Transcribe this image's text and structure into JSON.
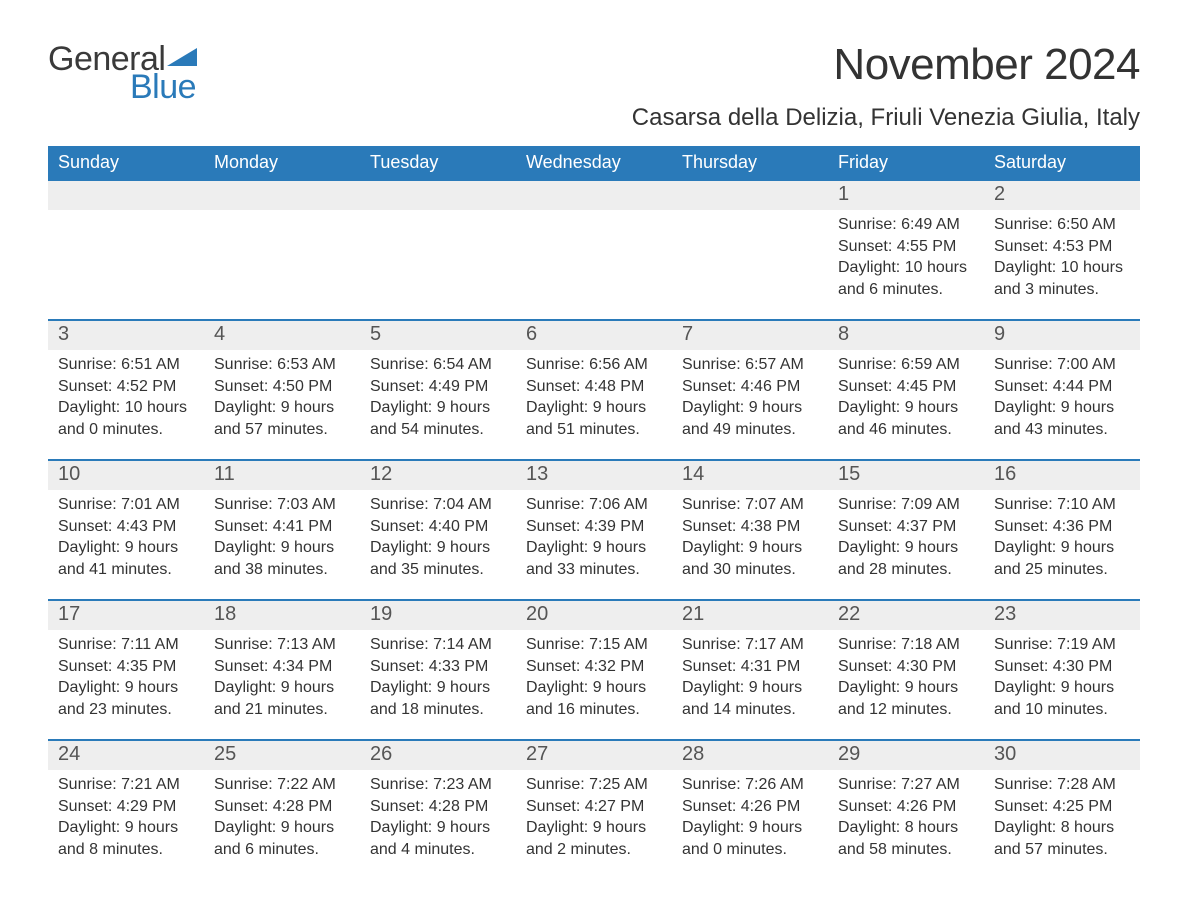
{
  "brand": {
    "part1": "General",
    "part2": "Blue"
  },
  "title": "November 2024",
  "location": "Casarsa della Delizia, Friuli Venezia Giulia, Italy",
  "colors": {
    "blue": "#2a7ab9",
    "band": "#eeeeee",
    "text": "#333333",
    "daynum": "#555555",
    "page_bg": "#ffffff"
  },
  "typography": {
    "title_fontsize_pt": 33,
    "location_fontsize_pt": 18,
    "dow_fontsize_pt": 13,
    "daynum_fontsize_pt": 15,
    "body_fontsize_pt": 12,
    "font_family": "Arial"
  },
  "dow": [
    "Sunday",
    "Monday",
    "Tuesday",
    "Wednesday",
    "Thursday",
    "Friday",
    "Saturday"
  ],
  "weeks": [
    [
      null,
      null,
      null,
      null,
      null,
      {
        "n": "1",
        "sunrise": "Sunrise: 6:49 AM",
        "sunset": "Sunset: 4:55 PM",
        "daylight1": "Daylight: 10 hours",
        "daylight2": "and 6 minutes."
      },
      {
        "n": "2",
        "sunrise": "Sunrise: 6:50 AM",
        "sunset": "Sunset: 4:53 PM",
        "daylight1": "Daylight: 10 hours",
        "daylight2": "and 3 minutes."
      }
    ],
    [
      {
        "n": "3",
        "sunrise": "Sunrise: 6:51 AM",
        "sunset": "Sunset: 4:52 PM",
        "daylight1": "Daylight: 10 hours",
        "daylight2": "and 0 minutes."
      },
      {
        "n": "4",
        "sunrise": "Sunrise: 6:53 AM",
        "sunset": "Sunset: 4:50 PM",
        "daylight1": "Daylight: 9 hours",
        "daylight2": "and 57 minutes."
      },
      {
        "n": "5",
        "sunrise": "Sunrise: 6:54 AM",
        "sunset": "Sunset: 4:49 PM",
        "daylight1": "Daylight: 9 hours",
        "daylight2": "and 54 minutes."
      },
      {
        "n": "6",
        "sunrise": "Sunrise: 6:56 AM",
        "sunset": "Sunset: 4:48 PM",
        "daylight1": "Daylight: 9 hours",
        "daylight2": "and 51 minutes."
      },
      {
        "n": "7",
        "sunrise": "Sunrise: 6:57 AM",
        "sunset": "Sunset: 4:46 PM",
        "daylight1": "Daylight: 9 hours",
        "daylight2": "and 49 minutes."
      },
      {
        "n": "8",
        "sunrise": "Sunrise: 6:59 AM",
        "sunset": "Sunset: 4:45 PM",
        "daylight1": "Daylight: 9 hours",
        "daylight2": "and 46 minutes."
      },
      {
        "n": "9",
        "sunrise": "Sunrise: 7:00 AM",
        "sunset": "Sunset: 4:44 PM",
        "daylight1": "Daylight: 9 hours",
        "daylight2": "and 43 minutes."
      }
    ],
    [
      {
        "n": "10",
        "sunrise": "Sunrise: 7:01 AM",
        "sunset": "Sunset: 4:43 PM",
        "daylight1": "Daylight: 9 hours",
        "daylight2": "and 41 minutes."
      },
      {
        "n": "11",
        "sunrise": "Sunrise: 7:03 AM",
        "sunset": "Sunset: 4:41 PM",
        "daylight1": "Daylight: 9 hours",
        "daylight2": "and 38 minutes."
      },
      {
        "n": "12",
        "sunrise": "Sunrise: 7:04 AM",
        "sunset": "Sunset: 4:40 PM",
        "daylight1": "Daylight: 9 hours",
        "daylight2": "and 35 minutes."
      },
      {
        "n": "13",
        "sunrise": "Sunrise: 7:06 AM",
        "sunset": "Sunset: 4:39 PM",
        "daylight1": "Daylight: 9 hours",
        "daylight2": "and 33 minutes."
      },
      {
        "n": "14",
        "sunrise": "Sunrise: 7:07 AM",
        "sunset": "Sunset: 4:38 PM",
        "daylight1": "Daylight: 9 hours",
        "daylight2": "and 30 minutes."
      },
      {
        "n": "15",
        "sunrise": "Sunrise: 7:09 AM",
        "sunset": "Sunset: 4:37 PM",
        "daylight1": "Daylight: 9 hours",
        "daylight2": "and 28 minutes."
      },
      {
        "n": "16",
        "sunrise": "Sunrise: 7:10 AM",
        "sunset": "Sunset: 4:36 PM",
        "daylight1": "Daylight: 9 hours",
        "daylight2": "and 25 minutes."
      }
    ],
    [
      {
        "n": "17",
        "sunrise": "Sunrise: 7:11 AM",
        "sunset": "Sunset: 4:35 PM",
        "daylight1": "Daylight: 9 hours",
        "daylight2": "and 23 minutes."
      },
      {
        "n": "18",
        "sunrise": "Sunrise: 7:13 AM",
        "sunset": "Sunset: 4:34 PM",
        "daylight1": "Daylight: 9 hours",
        "daylight2": "and 21 minutes."
      },
      {
        "n": "19",
        "sunrise": "Sunrise: 7:14 AM",
        "sunset": "Sunset: 4:33 PM",
        "daylight1": "Daylight: 9 hours",
        "daylight2": "and 18 minutes."
      },
      {
        "n": "20",
        "sunrise": "Sunrise: 7:15 AM",
        "sunset": "Sunset: 4:32 PM",
        "daylight1": "Daylight: 9 hours",
        "daylight2": "and 16 minutes."
      },
      {
        "n": "21",
        "sunrise": "Sunrise: 7:17 AM",
        "sunset": "Sunset: 4:31 PM",
        "daylight1": "Daylight: 9 hours",
        "daylight2": "and 14 minutes."
      },
      {
        "n": "22",
        "sunrise": "Sunrise: 7:18 AM",
        "sunset": "Sunset: 4:30 PM",
        "daylight1": "Daylight: 9 hours",
        "daylight2": "and 12 minutes."
      },
      {
        "n": "23",
        "sunrise": "Sunrise: 7:19 AM",
        "sunset": "Sunset: 4:30 PM",
        "daylight1": "Daylight: 9 hours",
        "daylight2": "and 10 minutes."
      }
    ],
    [
      {
        "n": "24",
        "sunrise": "Sunrise: 7:21 AM",
        "sunset": "Sunset: 4:29 PM",
        "daylight1": "Daylight: 9 hours",
        "daylight2": "and 8 minutes."
      },
      {
        "n": "25",
        "sunrise": "Sunrise: 7:22 AM",
        "sunset": "Sunset: 4:28 PM",
        "daylight1": "Daylight: 9 hours",
        "daylight2": "and 6 minutes."
      },
      {
        "n": "26",
        "sunrise": "Sunrise: 7:23 AM",
        "sunset": "Sunset: 4:28 PM",
        "daylight1": "Daylight: 9 hours",
        "daylight2": "and 4 minutes."
      },
      {
        "n": "27",
        "sunrise": "Sunrise: 7:25 AM",
        "sunset": "Sunset: 4:27 PM",
        "daylight1": "Daylight: 9 hours",
        "daylight2": "and 2 minutes."
      },
      {
        "n": "28",
        "sunrise": "Sunrise: 7:26 AM",
        "sunset": "Sunset: 4:26 PM",
        "daylight1": "Daylight: 9 hours",
        "daylight2": "and 0 minutes."
      },
      {
        "n": "29",
        "sunrise": "Sunrise: 7:27 AM",
        "sunset": "Sunset: 4:26 PM",
        "daylight1": "Daylight: 8 hours",
        "daylight2": "and 58 minutes."
      },
      {
        "n": "30",
        "sunrise": "Sunrise: 7:28 AM",
        "sunset": "Sunset: 4:25 PM",
        "daylight1": "Daylight: 8 hours",
        "daylight2": "and 57 minutes."
      }
    ]
  ]
}
